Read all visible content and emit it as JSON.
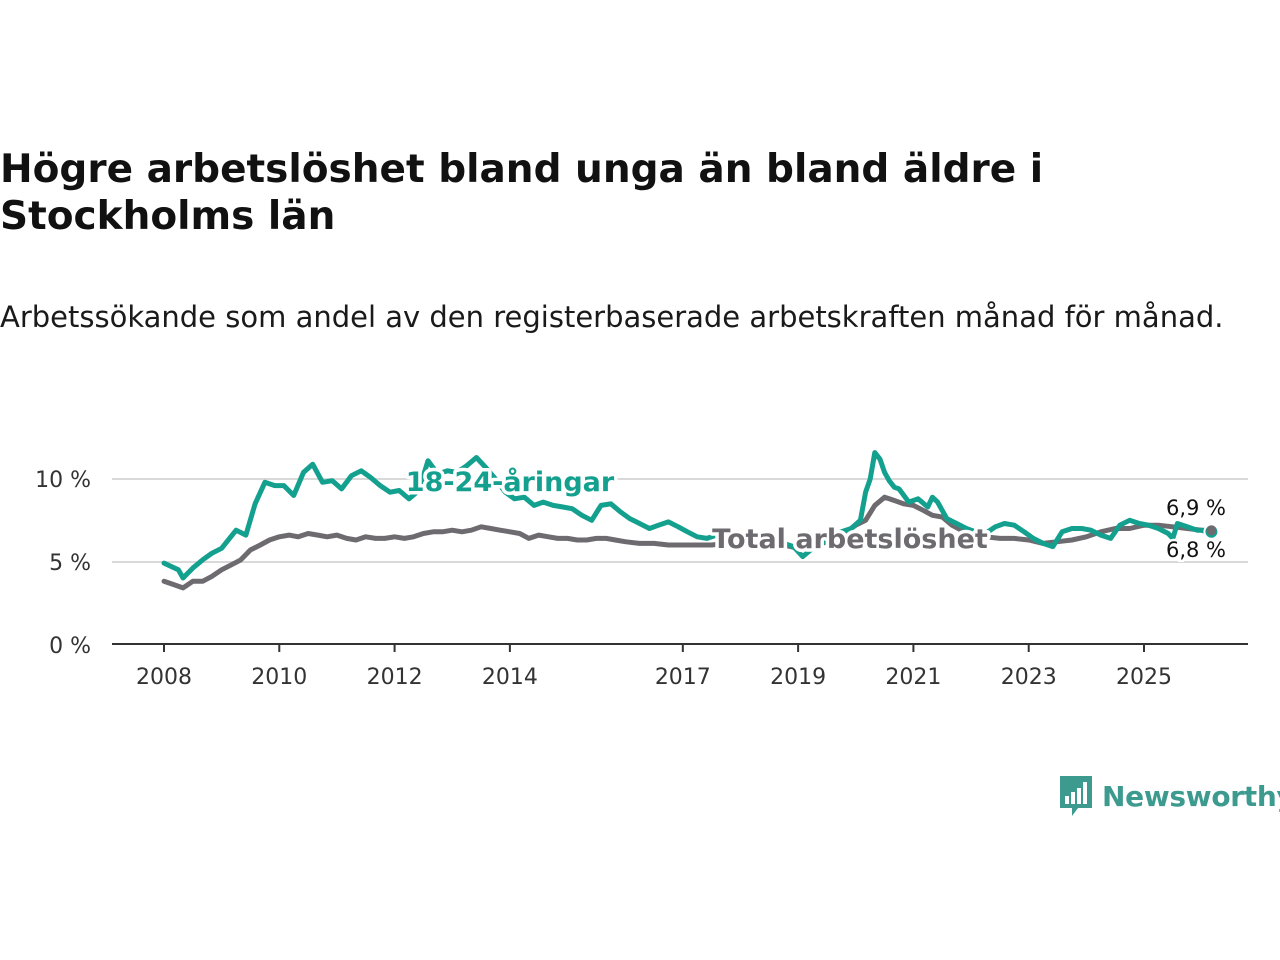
{
  "title": "Högre arbetslöshet bland unga än bland äldre i Stockholms län",
  "subtitle": "Arbetssökande som andel av den registerbaserade arbetskraften månad för månad.",
  "brand": "Newsworthy",
  "colors": {
    "young": "#14a08f",
    "total": "#6e6b70",
    "grid": "#d9d9d9",
    "axis": "#333333",
    "brand": "#3d9a8f"
  },
  "chart_data": {
    "type": "line",
    "title": "Högre arbetslöshet bland unga än bland äldre i Stockholms län",
    "xlabel": "",
    "ylabel": "",
    "ylim": [
      0,
      12
    ],
    "xlim": [
      2007.95,
      2026.35
    ],
    "y_ticks": [
      0,
      5,
      10
    ],
    "y_tick_labels": [
      "0 %",
      "5 %",
      "10 %"
    ],
    "x_ticks": [
      2008,
      2010,
      2012,
      2014,
      2017,
      2019,
      2021,
      2023,
      2025
    ],
    "x_tick_labels": [
      "2008",
      "2010",
      "2012",
      "2014",
      "2017",
      "2019",
      "2021",
      "2023",
      "2025"
    ],
    "end_labels": [
      "6,9 %",
      "6,8 %"
    ],
    "series": [
      {
        "name": "18-24-åringar",
        "key": "young",
        "x": [
          2008.0,
          2008.25,
          2008.33,
          2008.5,
          2008.67,
          2008.83,
          2009.0,
          2009.25,
          2009.42,
          2009.58,
          2009.75,
          2009.92,
          2010.08,
          2010.25,
          2010.42,
          2010.58,
          2010.75,
          2010.92,
          2011.08,
          2011.25,
          2011.42,
          2011.58,
          2011.75,
          2011.92,
          2012.08,
          2012.25,
          2012.42,
          2012.58,
          2012.75,
          2012.92,
          2013.08,
          2013.25,
          2013.42,
          2013.58,
          2013.75,
          2013.92,
          2014.08,
          2014.25,
          2014.42,
          2014.58,
          2014.75,
          2014.92,
          2015.08,
          2015.25,
          2015.42,
          2015.58,
          2015.75,
          2015.92,
          2016.08,
          2016.25,
          2016.42,
          2016.58,
          2016.75,
          2016.92,
          2017.08,
          2017.25,
          2017.42,
          2017.58,
          2017.75,
          2017.92,
          2018.08,
          2018.25,
          2018.42,
          2018.58,
          2018.75,
          2018.92,
          2019.08,
          2019.25,
          2019.42,
          2019.58,
          2019.75,
          2019.92,
          2020.08,
          2020.17,
          2020.25,
          2020.33,
          2020.42,
          2020.5,
          2020.58,
          2020.67,
          2020.75,
          2020.92,
          2021.08,
          2021.25,
          2021.33,
          2021.42,
          2021.58,
          2021.75,
          2021.92,
          2022.08,
          2022.25,
          2022.42,
          2022.58,
          2022.75,
          2022.92,
          2023.08,
          2023.25,
          2023.42,
          2023.58,
          2023.75,
          2023.92,
          2024.08,
          2024.25,
          2024.42,
          2024.58,
          2024.75,
          2024.92,
          2025.08,
          2025.25,
          2025.42,
          2025.5,
          2025.58,
          2025.75,
          2025.92,
          2026.0,
          2026.08,
          2026.17
        ],
        "y": [
          4.9,
          4.5,
          4.0,
          4.6,
          5.1,
          5.5,
          5.8,
          6.9,
          6.6,
          8.5,
          9.8,
          9.6,
          9.6,
          9.0,
          10.4,
          10.9,
          9.8,
          9.9,
          9.4,
          10.2,
          10.5,
          10.1,
          9.6,
          9.2,
          9.3,
          8.8,
          9.3,
          11.1,
          10.3,
          10.5,
          10.4,
          10.8,
          11.3,
          10.7,
          10.0,
          9.2,
          8.8,
          8.9,
          8.4,
          8.6,
          8.4,
          8.3,
          8.2,
          7.8,
          7.5,
          8.4,
          8.5,
          8.0,
          7.6,
          7.3,
          7.0,
          7.2,
          7.4,
          7.1,
          6.8,
          6.5,
          6.4,
          6.6,
          6.6,
          6.4,
          6.4,
          6.5,
          6.5,
          6.1,
          6.1,
          5.9,
          5.3,
          5.8,
          6.1,
          6.6,
          6.8,
          7.0,
          7.5,
          9.2,
          10.0,
          11.6,
          11.2,
          10.4,
          9.9,
          9.5,
          9.4,
          8.6,
          8.8,
          8.3,
          8.9,
          8.6,
          7.6,
          7.3,
          7.0,
          6.8,
          6.7,
          7.1,
          7.3,
          7.2,
          6.8,
          6.4,
          6.1,
          5.9,
          6.8,
          7.0,
          7.0,
          6.9,
          6.6,
          6.4,
          7.2,
          7.5,
          7.3,
          7.2,
          7.0,
          6.7,
          6.4,
          7.3,
          7.1,
          6.9,
          6.9,
          6.8,
          6.8
        ]
      },
      {
        "name": "Total arbetslöshet",
        "key": "total",
        "x": [
          2008.0,
          2008.17,
          2008.33,
          2008.5,
          2008.67,
          2008.83,
          2009.0,
          2009.17,
          2009.33,
          2009.5,
          2009.67,
          2009.83,
          2010.0,
          2010.17,
          2010.33,
          2010.5,
          2010.67,
          2010.83,
          2011.0,
          2011.17,
          2011.33,
          2011.5,
          2011.67,
          2011.83,
          2012.0,
          2012.17,
          2012.33,
          2012.5,
          2012.67,
          2012.83,
          2013.0,
          2013.17,
          2013.33,
          2013.5,
          2013.67,
          2013.83,
          2014.0,
          2014.17,
          2014.33,
          2014.5,
          2014.67,
          2014.83,
          2015.0,
          2015.17,
          2015.33,
          2015.5,
          2015.67,
          2015.83,
          2016.0,
          2016.25,
          2016.5,
          2016.75,
          2017.0,
          2017.25,
          2017.5,
          2017.75,
          2018.0,
          2018.25,
          2018.5,
          2018.75,
          2019.0,
          2019.25,
          2019.5,
          2019.75,
          2020.0,
          2020.17,
          2020.33,
          2020.5,
          2020.67,
          2020.83,
          2021.0,
          2021.17,
          2021.33,
          2021.5,
          2021.67,
          2021.83,
          2022.0,
          2022.25,
          2022.5,
          2022.75,
          2023.0,
          2023.25,
          2023.5,
          2023.75,
          2024.0,
          2024.25,
          2024.5,
          2024.75,
          2025.0,
          2025.25,
          2025.5,
          2025.75,
          2026.0,
          2026.17
        ],
        "y": [
          3.8,
          3.6,
          3.4,
          3.8,
          3.8,
          4.1,
          4.5,
          4.8,
          5.1,
          5.7,
          6.0,
          6.3,
          6.5,
          6.6,
          6.5,
          6.7,
          6.6,
          6.5,
          6.6,
          6.4,
          6.3,
          6.5,
          6.4,
          6.4,
          6.5,
          6.4,
          6.5,
          6.7,
          6.8,
          6.8,
          6.9,
          6.8,
          6.9,
          7.1,
          7.0,
          6.9,
          6.8,
          6.7,
          6.4,
          6.6,
          6.5,
          6.4,
          6.4,
          6.3,
          6.3,
          6.4,
          6.4,
          6.3,
          6.2,
          6.1,
          6.1,
          6.0,
          6.0,
          6.0,
          6.0,
          6.1,
          6.1,
          6.1,
          6.0,
          6.0,
          5.8,
          5.9,
          6.2,
          6.6,
          7.2,
          7.5,
          8.4,
          8.9,
          8.7,
          8.5,
          8.4,
          8.1,
          7.8,
          7.7,
          7.2,
          6.9,
          6.7,
          6.5,
          6.4,
          6.4,
          6.3,
          6.1,
          6.2,
          6.3,
          6.5,
          6.8,
          7.0,
          7.0,
          7.2,
          7.2,
          7.1,
          7.0,
          6.9,
          6.9
        ]
      }
    ]
  }
}
